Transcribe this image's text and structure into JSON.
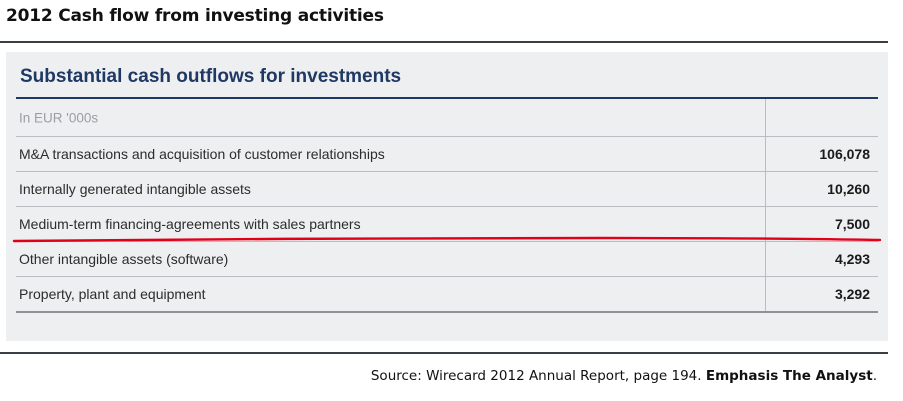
{
  "page_title": "2012 Cash flow from investing activities",
  "panel": {
    "heading": "Substantial cash outflows for investments",
    "unit_label": "In EUR '000s",
    "rows": [
      {
        "label": "M&A transactions and acquisition of customer relationships",
        "value": "106,078"
      },
      {
        "label": "Internally generated intangible assets",
        "value": "10,260"
      },
      {
        "label": "Medium-term financing-agreements with sales partners",
        "value": "7,500"
      },
      {
        "label": "Other intangible assets (software)",
        "value": "4,293"
      },
      {
        "label": "Property, plant and equipment",
        "value": "3,292"
      }
    ]
  },
  "emphasis": {
    "color": "#e0001b"
  },
  "source": {
    "text": "Source: Wirecard 2012 Annual Report, page 194. ",
    "emphasis": "Emphasis The Analyst",
    "end": "."
  }
}
